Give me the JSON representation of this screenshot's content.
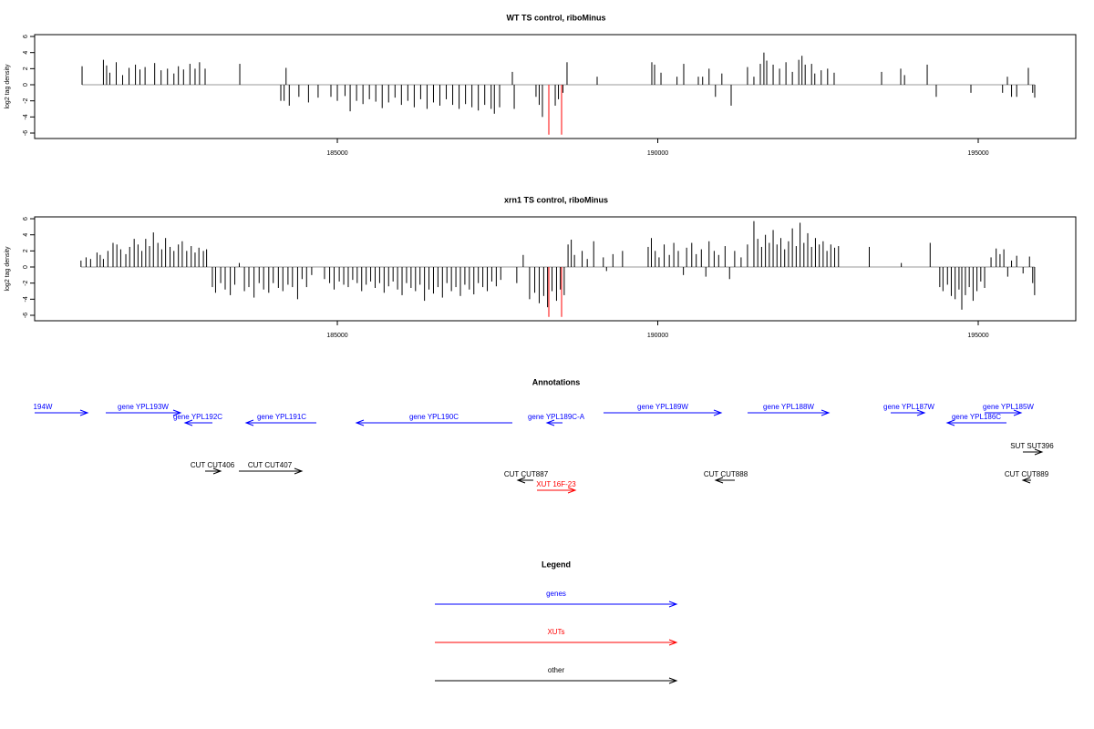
{
  "chart_data": [
    {
      "type": "bar",
      "title": "WT TS control, riboMinus",
      "ylabel": "log2 tag density",
      "xlim": [
        180277,
        196522
      ],
      "ylim": [
        -6.68,
        6.23
      ],
      "xticks": [
        185000,
        190000,
        195000
      ],
      "yticks": [
        -6,
        -4,
        -2,
        0,
        2,
        4,
        6
      ],
      "series": [
        {
          "color": "#000000",
          "x": [
            181017,
            181350,
            181400,
            181450,
            181550,
            181650,
            181750,
            181850,
            181920,
            182000,
            182150,
            182250,
            182350,
            182450,
            182520,
            182600,
            182700,
            182780,
            182850,
            182937,
            183478,
            184118,
            184170,
            184200,
            184250,
            184400,
            184550,
            184700,
            184900,
            185000,
            185120,
            185200,
            185300,
            185400,
            185500,
            185600,
            185700,
            185800,
            185900,
            186000,
            186100,
            186200,
            186300,
            186400,
            186500,
            186600,
            186700,
            186800,
            186900,
            187000,
            187100,
            187200,
            187300,
            187400,
            187450,
            187532,
            187731,
            187760,
            188100,
            188150,
            188200,
            188400,
            188450,
            188520,
            188584,
            189054,
            189907,
            189950,
            190050,
            190300,
            190405,
            190633,
            190700,
            190800,
            190900,
            191000,
            191145,
            191400,
            191500,
            191600,
            191656,
            191700,
            191800,
            191900,
            192000,
            192100,
            192200,
            192250,
            192300,
            192400,
            192450,
            192550,
            192650,
            192752,
            193492,
            193791,
            193850,
            194204,
            194345,
            194886,
            195380,
            195455,
            195520,
            195600,
            195782,
            195850,
            195882
          ],
          "values": [
            2.3,
            3.1,
            2.4,
            1.5,
            2.8,
            1.2,
            2.1,
            2.5,
            1.9,
            2.2,
            2.7,
            1.8,
            2.0,
            1.4,
            2.3,
            1.9,
            2.6,
            2.0,
            2.8,
            2.0,
            2.6,
            -2.0,
            -2.0,
            2.1,
            -2.6,
            -1.5,
            -2.2,
            -1.6,
            -1.5,
            -2.0,
            -1.4,
            -3.3,
            -2.0,
            -2.4,
            -1.8,
            -2.1,
            -2.9,
            -2.2,
            -1.6,
            -2.5,
            -2.0,
            -2.8,
            -1.8,
            -3.0,
            -2.2,
            -2.6,
            -1.8,
            -2.5,
            -3.0,
            -2.4,
            -2.8,
            -3.2,
            -2.5,
            -3.0,
            -3.6,
            -2.8,
            1.6,
            -3.0,
            -1.5,
            -2.5,
            -4.0,
            -2.6,
            -1.8,
            -1.0,
            2.8,
            1.0,
            2.8,
            2.5,
            1.5,
            1.0,
            2.6,
            1.0,
            1.0,
            2.0,
            -1.5,
            1.4,
            -2.6,
            2.2,
            1.0,
            2.6,
            4.0,
            3.0,
            2.5,
            2.0,
            2.8,
            1.6,
            3.1,
            3.6,
            2.5,
            2.6,
            1.4,
            1.8,
            2.0,
            1.5,
            1.6,
            2.0,
            1.2,
            2.5,
            -1.5,
            -1.0,
            -1.0,
            1.0,
            -1.5,
            -1.5,
            2.1,
            -1.0,
            -1.6
          ]
        },
        {
          "color": "#ff0000",
          "x": [
            188300,
            188499
          ],
          "values": [
            -6.2,
            -6.2
          ]
        }
      ]
    },
    {
      "type": "bar",
      "title": "xrn1 TS control, riboMinus",
      "ylabel": "log2 tag density",
      "xlim": [
        180277,
        196522
      ],
      "ylim": [
        -6.68,
        6.23
      ],
      "xticks": [
        185000,
        190000,
        195000
      ],
      "yticks": [
        -6,
        -4,
        -2,
        0,
        2,
        4,
        6
      ],
      "series": [
        {
          "color": "#000000",
          "x": [
            181000,
            181080,
            181150,
            181250,
            181300,
            181350,
            181420,
            181500,
            181560,
            181620,
            181700,
            181760,
            181830,
            181890,
            181950,
            182010,
            182070,
            182130,
            182200,
            182260,
            182320,
            182390,
            182450,
            182520,
            182580,
            182650,
            182720,
            182780,
            182840,
            182910,
            182960,
            183050,
            183100,
            183180,
            183250,
            183330,
            183400,
            183470,
            183550,
            183620,
            183700,
            183780,
            183850,
            183930,
            184000,
            184080,
            184150,
            184230,
            184300,
            184380,
            184450,
            184520,
            184600,
            184800,
            184880,
            184950,
            185030,
            185100,
            185170,
            185240,
            185310,
            185380,
            185450,
            185520,
            185590,
            185660,
            185730,
            185800,
            185870,
            185940,
            186010,
            186080,
            186150,
            186220,
            186290,
            186360,
            186430,
            186500,
            186570,
            186640,
            186710,
            186780,
            186850,
            186920,
            186990,
            187060,
            187130,
            187200,
            187270,
            187340,
            187410,
            187480,
            187550,
            187800,
            187900,
            188000,
            188080,
            188150,
            188220,
            188280,
            188350,
            188420,
            188480,
            188540,
            188600,
            188650,
            188700,
            188820,
            188900,
            189000,
            189150,
            189200,
            189300,
            189450,
            189850,
            189900,
            189960,
            190020,
            190100,
            190180,
            190250,
            190320,
            190400,
            190450,
            190530,
            190600,
            190680,
            190750,
            190800,
            190880,
            190950,
            191050,
            191120,
            191200,
            191300,
            191400,
            191500,
            191560,
            191620,
            191680,
            191740,
            191800,
            191860,
            191920,
            191980,
            192040,
            192100,
            192160,
            192220,
            192280,
            192340,
            192400,
            192460,
            192520,
            192580,
            192640,
            192700,
            192760,
            192820,
            193300,
            193800,
            194250,
            194400,
            194450,
            194520,
            194580,
            194640,
            194700,
            194744,
            194800,
            194860,
            194920,
            194980,
            195040,
            195100,
            195200,
            195280,
            195340,
            195400,
            195460,
            195520,
            195600,
            195700,
            195800,
            195850,
            195880
          ],
          "values": [
            0.8,
            1.2,
            1.0,
            1.8,
            1.5,
            1.0,
            2.0,
            3.0,
            2.8,
            2.2,
            1.6,
            2.5,
            3.5,
            2.8,
            2.0,
            3.5,
            2.6,
            4.3,
            3.0,
            2.2,
            3.6,
            2.5,
            2.0,
            2.8,
            3.2,
            2.0,
            2.6,
            1.8,
            2.4,
            2.0,
            2.2,
            -2.5,
            -3.2,
            -2.0,
            -2.8,
            -3.5,
            -2.2,
            0.5,
            -3.0,
            -2.5,
            -3.8,
            -2.0,
            -2.8,
            -3.2,
            -2.0,
            -2.6,
            -3.0,
            -2.2,
            -2.5,
            -4.0,
            -1.5,
            -2.5,
            -1.0,
            -1.5,
            -2.0,
            -2.8,
            -1.8,
            -2.2,
            -2.5,
            -1.6,
            -2.0,
            -3.0,
            -2.2,
            -1.8,
            -2.6,
            -2.0,
            -3.2,
            -2.4,
            -1.8,
            -2.8,
            -3.5,
            -2.0,
            -2.6,
            -3.0,
            -2.2,
            -4.2,
            -2.8,
            -3.3,
            -2.5,
            -3.8,
            -2.0,
            -3.0,
            -2.5,
            -3.6,
            -2.2,
            -2.8,
            -3.4,
            -2.0,
            -2.5,
            -3.0,
            -1.8,
            -2.4,
            -1.6,
            -2.0,
            1.5,
            -4.0,
            -3.2,
            -4.5,
            -3.6,
            -5.0,
            -3.0,
            -4.2,
            -2.8,
            -3.5,
            2.8,
            3.4,
            1.5,
            2.0,
            1.0,
            3.2,
            1.2,
            -0.5,
            1.6,
            2.0,
            2.5,
            3.6,
            2.0,
            1.2,
            2.8,
            1.5,
            3.0,
            2.0,
            -1.0,
            2.4,
            3.0,
            1.6,
            2.2,
            -1.2,
            3.2,
            2.0,
            1.5,
            2.6,
            -1.5,
            2.0,
            1.2,
            2.8,
            5.7,
            3.5,
            2.5,
            4.0,
            3.0,
            4.6,
            2.8,
            3.6,
            2.2,
            3.2,
            4.8,
            2.6,
            5.5,
            3.0,
            4.2,
            2.5,
            3.6,
            2.8,
            3.2,
            2.0,
            2.8,
            2.4,
            2.6,
            2.5,
            0.5,
            3.0,
            -2.5,
            -3.0,
            -2.2,
            -3.6,
            -4.0,
            -2.8,
            -5.3,
            -3.5,
            -2.5,
            -4.2,
            -3.0,
            -1.8,
            -2.6,
            1.2,
            2.3,
            1.6,
            2.2,
            -1.2,
            0.8,
            1.4,
            -0.8,
            1.3,
            -2.0,
            -3.5
          ]
        },
        {
          "color": "#ff0000",
          "x": [
            188300,
            188499
          ],
          "values": [
            -6.2,
            -6.2
          ]
        }
      ]
    }
  ],
  "annotations": {
    "title": "Annotations",
    "items": [
      {
        "label": "194W",
        "color": "#0000ff"
      },
      {
        "label": "gene YPL193W",
        "color": "#0000ff"
      },
      {
        "label": "gene YPL192C",
        "color": "#0000ff"
      },
      {
        "label": "gene YPL191C",
        "color": "#0000ff"
      },
      {
        "label": "gene YPL190C",
        "color": "#0000ff"
      },
      {
        "label": "gene YPL189C-A",
        "color": "#0000ff"
      },
      {
        "label": "gene YPL189W",
        "color": "#0000ff"
      },
      {
        "label": "gene YPL188W",
        "color": "#0000ff"
      },
      {
        "label": "gene YPL187W",
        "color": "#0000ff"
      },
      {
        "label": "gene YPL185W",
        "color": "#0000ff"
      },
      {
        "label": "gene YPL186C",
        "color": "#0000ff"
      },
      {
        "label": "SUT SUT396",
        "color": "#000000"
      },
      {
        "label": "CUT CUT406",
        "color": "#000000"
      },
      {
        "label": "CUT CUT407",
        "color": "#000000"
      },
      {
        "label": "CUT CUT887",
        "color": "#000000"
      },
      {
        "label": "XUT 16F-23",
        "color": "#ff0000"
      },
      {
        "label": "CUT CUT888",
        "color": "#000000"
      },
      {
        "label": "CUT CUT889",
        "color": "#000000"
      }
    ]
  },
  "legend": {
    "title": "Legend",
    "items": [
      {
        "name": "genes",
        "color": "#0000ff"
      },
      {
        "name": "XUTs",
        "color": "#ff0000"
      },
      {
        "name": "other",
        "color": "#000000"
      }
    ]
  }
}
